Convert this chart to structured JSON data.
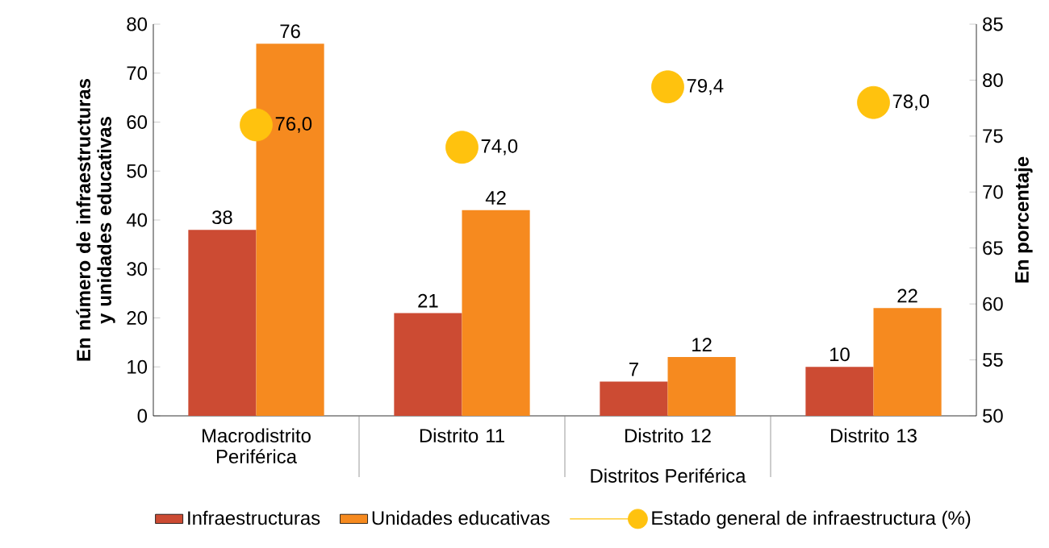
{
  "chart_data": {
    "type": "bar",
    "categories": [
      "Macrodistrito Periférica",
      "Distrito 11",
      "Distrito 12",
      "Distrito 13"
    ],
    "ylabel": "En número de infraestructuras y unidades educativas",
    "y2label": "En porcentaje",
    "annotations": [
      "Distritos Periférica"
    ],
    "ylim": [
      0,
      80
    ],
    "yticks": [
      0,
      10,
      20,
      30,
      40,
      50,
      60,
      70,
      80
    ],
    "y2lim": [
      50,
      85
    ],
    "y2ticks": [
      50,
      55,
      60,
      65,
      70,
      75,
      80,
      85
    ],
    "grid": false,
    "legend": "bottom",
    "series": [
      {
        "name": "Infraestructuras",
        "color": "#cc4b33",
        "values": [
          38,
          21,
          7,
          10
        ],
        "value_labels": [
          "38",
          "21",
          "7",
          "10"
        ]
      },
      {
        "name": "Unidades educativas",
        "color": "#f68a1f",
        "values": [
          76,
          42,
          12,
          22
        ],
        "value_labels": [
          "76",
          "42",
          "12",
          "22"
        ]
      },
      {
        "name": "Estado general de infraestructura (%)",
        "type": "scatter",
        "axis": "y2",
        "marker": "circle",
        "color": "#ffc20e",
        "values": [
          76.0,
          74.0,
          79.4,
          78.0
        ],
        "value_labels": [
          "76,0",
          "74,0",
          "79,4",
          "78,0"
        ]
      }
    ]
  }
}
